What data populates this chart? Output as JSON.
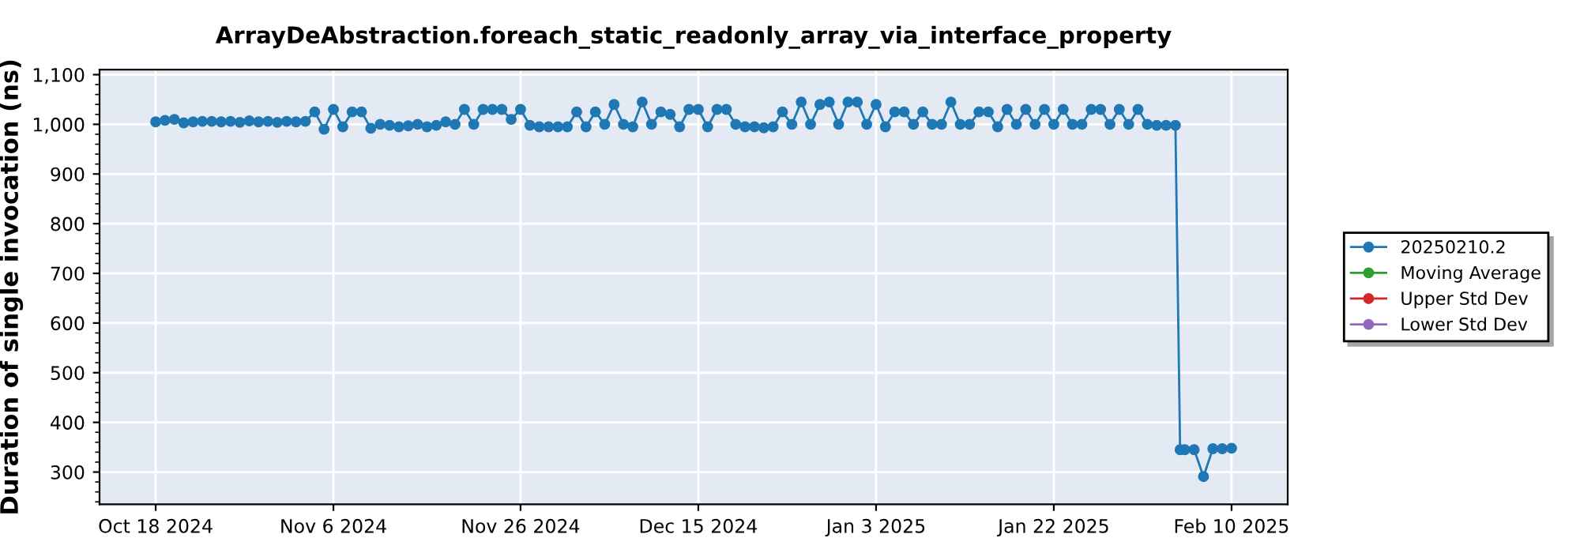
{
  "chart_data": {
    "type": "line",
    "title": "ArrayDeAbstraction.foreach_static_readonly_array_via_interface_property",
    "ylabel": "Duration of single invocation (ns)",
    "x": [
      "2024-10-18",
      "2024-10-19",
      "2024-10-20",
      "2024-10-21",
      "2024-10-22",
      "2024-10-23",
      "2024-10-24",
      "2024-10-25",
      "2024-10-26",
      "2024-10-27",
      "2024-10-28",
      "2024-10-29",
      "2024-10-30",
      "2024-10-31",
      "2024-11-01",
      "2024-11-02",
      "2024-11-03",
      "2024-11-04",
      "2024-11-05",
      "2024-11-06",
      "2024-11-07",
      "2024-11-08",
      "2024-11-09",
      "2024-11-10",
      "2024-11-11",
      "2024-11-12",
      "2024-11-13",
      "2024-11-14",
      "2024-11-15",
      "2024-11-16",
      "2024-11-17",
      "2024-11-18",
      "2024-11-19",
      "2024-11-20",
      "2024-11-21",
      "2024-11-22",
      "2024-11-23",
      "2024-11-24",
      "2024-11-25",
      "2024-11-26",
      "2024-11-27",
      "2024-11-28",
      "2024-11-29",
      "2024-11-30",
      "2024-12-01",
      "2024-12-02",
      "2024-12-03",
      "2024-12-04",
      "2024-12-05",
      "2024-12-06",
      "2024-12-07",
      "2024-12-08",
      "2024-12-09",
      "2024-12-10",
      "2024-12-11",
      "2024-12-12",
      "2024-12-13",
      "2024-12-14",
      "2024-12-15",
      "2024-12-16",
      "2024-12-17",
      "2024-12-18",
      "2024-12-19",
      "2024-12-20",
      "2024-12-21",
      "2024-12-22",
      "2024-12-23",
      "2024-12-24",
      "2024-12-25",
      "2024-12-26",
      "2024-12-27",
      "2024-12-28",
      "2024-12-29",
      "2024-12-30",
      "2024-12-31",
      "2025-01-01",
      "2025-01-02",
      "2025-01-03",
      "2025-01-04",
      "2025-01-05",
      "2025-01-06",
      "2025-01-07",
      "2025-01-08",
      "2025-01-09",
      "2025-01-10",
      "2025-01-11",
      "2025-01-12",
      "2025-01-13",
      "2025-01-14",
      "2025-01-15",
      "2025-01-16",
      "2025-01-17",
      "2025-01-18",
      "2025-01-19",
      "2025-01-20",
      "2025-01-21",
      "2025-01-22",
      "2025-01-23",
      "2025-01-24",
      "2025-01-25",
      "2025-01-26",
      "2025-01-27",
      "2025-01-28",
      "2025-01-29",
      "2025-01-30",
      "2025-01-31",
      "2025-02-01",
      "2025-02-02",
      "2025-02-03",
      "2025-02-04",
      "2025-02-04T12:00",
      "2025-02-05",
      "2025-02-06",
      "2025-02-07",
      "2025-02-08",
      "2025-02-09",
      "2025-02-10"
    ],
    "series": [
      {
        "name": "20250210.2",
        "color": "#1f77b4",
        "values": [
          1005,
          1008,
          1010,
          1003,
          1005,
          1006,
          1006,
          1005,
          1006,
          1004,
          1007,
          1005,
          1006,
          1004,
          1006,
          1005,
          1006,
          1025,
          990,
          1030,
          995,
          1025,
          1025,
          992,
          1000,
          998,
          995,
          997,
          1000,
          995,
          998,
          1005,
          1000,
          1030,
          1000,
          1030,
          1030,
          1030,
          1010,
          1030,
          998,
          995,
          995,
          995,
          995,
          1025,
          995,
          1025,
          1000,
          1040,
          1000,
          995,
          1045,
          1000,
          1025,
          1020,
          995,
          1030,
          1030,
          995,
          1030,
          1030,
          1000,
          995,
          995,
          993,
          995,
          1025,
          1000,
          1045,
          1000,
          1040,
          1045,
          1000,
          1045,
          1045,
          1000,
          1040,
          995,
          1025,
          1025,
          1000,
          1025,
          1000,
          1000,
          1045,
          1000,
          1000,
          1025,
          1025,
          995,
          1030,
          1000,
          1030,
          1000,
          1030,
          1000,
          1030,
          1000,
          1000,
          1030,
          1030,
          1000,
          1030,
          1000,
          1030,
          1000,
          998,
          998,
          998,
          345,
          345,
          345,
          291,
          347,
          347,
          348
        ]
      },
      {
        "name": "Moving Average",
        "color": "#2ca02c",
        "values": [
          null,
          null,
          null,
          null,
          null,
          null,
          null,
          null,
          null,
          null,
          null,
          null,
          null,
          null,
          null,
          null,
          null,
          null,
          null,
          null,
          null,
          null,
          null,
          null,
          null,
          null,
          null,
          null,
          null,
          null,
          null,
          null,
          null,
          null,
          null,
          null,
          null,
          null,
          null,
          null,
          null,
          null,
          null,
          null,
          null,
          null,
          null,
          null,
          null,
          null,
          null,
          null,
          null,
          null,
          null,
          null,
          null,
          null,
          null,
          null,
          null,
          null,
          null,
          null,
          null,
          null,
          null,
          null,
          null,
          null,
          null,
          null,
          null,
          null,
          null,
          null,
          null,
          null,
          null,
          null,
          null,
          null,
          null,
          null,
          null,
          null,
          null,
          null,
          null,
          null,
          null,
          null,
          null,
          null,
          null,
          null,
          null,
          null,
          null,
          null,
          null,
          null,
          null,
          null,
          null,
          null,
          null,
          null,
          null,
          null,
          null,
          null,
          null,
          null,
          null,
          null,
          null
        ]
      },
      {
        "name": "Upper Std Dev",
        "color": "#d62728",
        "values": [
          null,
          null,
          null,
          null,
          null,
          null,
          null,
          null,
          null,
          null,
          null,
          null,
          null,
          null,
          null,
          null,
          null,
          null,
          null,
          null,
          null,
          null,
          null,
          null,
          null,
          null,
          null,
          null,
          null,
          null,
          null,
          null,
          null,
          null,
          null,
          null,
          null,
          null,
          null,
          null,
          null,
          null,
          null,
          null,
          null,
          null,
          null,
          null,
          null,
          null,
          null,
          null,
          null,
          null,
          null,
          null,
          null,
          null,
          null,
          null,
          null,
          null,
          null,
          null,
          null,
          null,
          null,
          null,
          null,
          null,
          null,
          null,
          null,
          null,
          null,
          null,
          null,
          null,
          null,
          null,
          null,
          null,
          null,
          null,
          null,
          null,
          null,
          null,
          null,
          null,
          null,
          null,
          null,
          null,
          null,
          null,
          null,
          null,
          null,
          null,
          null,
          null,
          null,
          null,
          null,
          null,
          null,
          null,
          null,
          null,
          null,
          null,
          null,
          null,
          null,
          null,
          null
        ]
      },
      {
        "name": "Lower Std Dev",
        "color": "#9467bd",
        "values": [
          null,
          null,
          null,
          null,
          null,
          null,
          null,
          null,
          null,
          null,
          null,
          null,
          null,
          null,
          null,
          null,
          null,
          null,
          null,
          null,
          null,
          null,
          null,
          null,
          null,
          null,
          null,
          null,
          null,
          null,
          null,
          null,
          null,
          null,
          null,
          null,
          null,
          null,
          null,
          null,
          null,
          null,
          null,
          null,
          null,
          null,
          null,
          null,
          null,
          null,
          null,
          null,
          null,
          null,
          null,
          null,
          null,
          null,
          null,
          null,
          null,
          null,
          null,
          null,
          null,
          null,
          null,
          null,
          null,
          null,
          null,
          null,
          null,
          null,
          null,
          null,
          null,
          null,
          null,
          null,
          null,
          null,
          null,
          null,
          null,
          null,
          null,
          null,
          null,
          null,
          null,
          null,
          null,
          null,
          null,
          null,
          null,
          null,
          null,
          null,
          null,
          null,
          null,
          null,
          null,
          null,
          null,
          null,
          null,
          null,
          null,
          null,
          null,
          null,
          null,
          null,
          null
        ]
      }
    ],
    "xlim": [
      "2024-10-12",
      "2025-02-16"
    ],
    "xticks": [
      {
        "value": "2024-10-18",
        "label": "Oct 18 2024"
      },
      {
        "value": "2024-11-06",
        "label": "Nov 6 2024"
      },
      {
        "value": "2024-11-26",
        "label": "Nov 26 2024"
      },
      {
        "value": "2024-12-15",
        "label": "Dec 15 2024"
      },
      {
        "value": "2025-01-03",
        "label": "Jan 3 2025"
      },
      {
        "value": "2025-01-22",
        "label": "Jan 22 2025"
      },
      {
        "value": "2025-02-10",
        "label": "Feb 10 2025"
      }
    ],
    "ylim": [
      235,
      1110
    ],
    "yticks": [
      300,
      400,
      500,
      600,
      700,
      800,
      900,
      {
        "value": 1000,
        "label": "1,000"
      },
      {
        "value": 1100,
        "label": "1,100"
      }
    ],
    "grid": true,
    "legend": "right",
    "marker": "circle",
    "line_style": "solid"
  }
}
